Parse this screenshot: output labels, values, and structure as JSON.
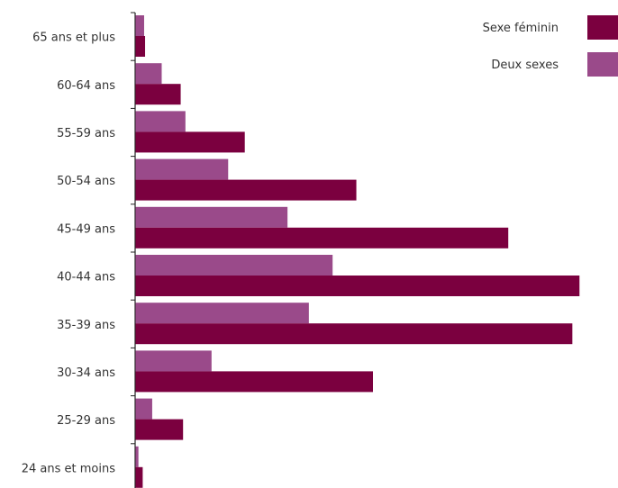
{
  "chart_data": {
    "type": "bar",
    "orientation": "horizontal",
    "categories": [
      "65 ans et plus",
      "60-64 ans",
      "55-59 ans",
      "50-54 ans",
      "45-49 ans",
      "40-44 ans",
      "35-39 ans",
      "30-34 ans",
      "25-29 ans",
      "24 ans et moins"
    ],
    "series": [
      {
        "name": "Deux sexes",
        "color": "#9a4a8a",
        "values": [
          1.8,
          5.5,
          10.5,
          19.5,
          32.0,
          41.5,
          36.5,
          16.0,
          3.5,
          0.6
        ]
      },
      {
        "name": "Sexe féminin",
        "color": "#7b003f",
        "values": [
          2.0,
          9.5,
          23.0,
          46.5,
          78.5,
          93.5,
          92.0,
          50.0,
          10.0,
          1.5
        ]
      }
    ],
    "xlim": [
      0,
      100
    ],
    "grid": false,
    "legend": "top-right"
  }
}
